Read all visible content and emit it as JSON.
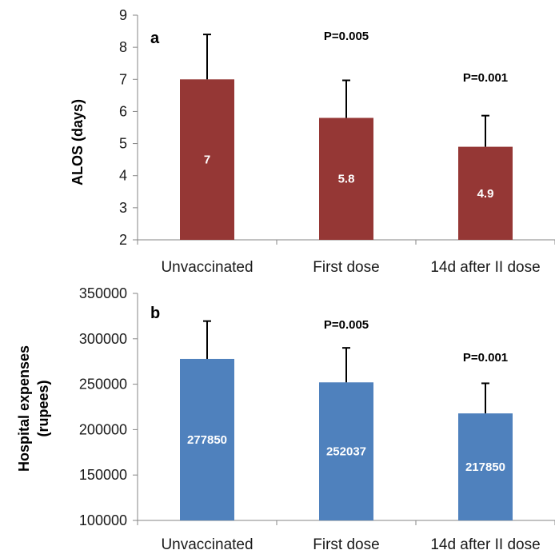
{
  "chart_data": [
    {
      "panel": "a",
      "type": "bar",
      "ylabel": "ALOS  (days)",
      "xlabel": "",
      "ylim": [
        2,
        9
      ],
      "yticks": [
        "2",
        "3",
        "4",
        "5",
        "6",
        "7",
        "8",
        "9"
      ],
      "categories": [
        "Unvaccinated",
        "First dose",
        "14d after II dose"
      ],
      "values": [
        7,
        5.8,
        4.9
      ],
      "value_labels": [
        "7",
        "5.8",
        "4.9"
      ],
      "error_upper": [
        8.4,
        6.97,
        5.87
      ],
      "annotations": [
        "",
        "P=0.005",
        "P=0.001"
      ],
      "bar_color": "#953735",
      "grid": false,
      "legend": "none"
    },
    {
      "panel": "b",
      "type": "bar",
      "ylabel": "Hospital expenses (rupees)",
      "ylabel_lines": [
        "Hospital expenses",
        "(rupees)"
      ],
      "xlabel": "",
      "ylim": [
        100000,
        350000
      ],
      "yticks": [
        "100000",
        "150000",
        "200000",
        "250000",
        "300000",
        "350000"
      ],
      "categories": [
        "Unvaccinated",
        "First dose",
        "14d after II dose"
      ],
      "values": [
        277850,
        252037,
        217850
      ],
      "value_labels": [
        "277850",
        "252037",
        "217850"
      ],
      "error_upper": [
        319500,
        290000,
        251000
      ],
      "annotations": [
        "",
        "P=0.005",
        "P=0.001"
      ],
      "bar_color": "#4f81bd",
      "grid": false,
      "legend": "none"
    }
  ]
}
